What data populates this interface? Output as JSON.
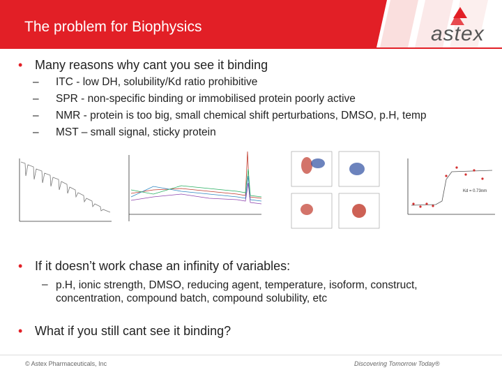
{
  "header": {
    "title": "The problem for Biophysics",
    "logo": "astex"
  },
  "bullets": [
    {
      "text": "Many reasons why cant you see it binding",
      "sub": [
        "ITC - low DH, solubility/Kd ratio prohibitive",
        "SPR - non-specific binding or immobilised protein poorly active",
        "NMR - protein is too big, small chemical shift perturbations, DMSO, p.H, temp",
        "MST – small signal, sticky protein"
      ]
    },
    {
      "text": "If it doesn’t work chase an infinity of variables:",
      "sub": [
        "p.H, ionic strength, DMSO, reducing agent, temperature, isoform, construct, concentration, compound batch, compound solubility, etc"
      ]
    },
    {
      "text": "What if you still cant see it binding?",
      "sub": []
    }
  ],
  "figures": {
    "annotation": "Kd = 0.73nm"
  },
  "footer": {
    "left": "© Astex Pharmaceuticals, Inc",
    "right": "Discovering Tomorrow Today®"
  }
}
